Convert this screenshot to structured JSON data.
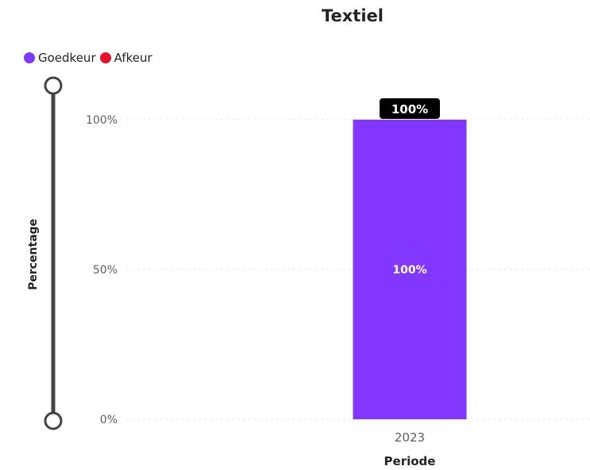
{
  "chart_data": {
    "type": "bar",
    "title": "Textiel",
    "xlabel": "Periode",
    "ylabel": "Percentage",
    "categories": [
      "2023"
    ],
    "series": [
      {
        "name": "Goedkeur",
        "color": "#8237ff",
        "values": [
          100
        ]
      },
      {
        "name": "Afkeur",
        "color": "#e8112d",
        "values": [
          0
        ]
      }
    ],
    "y_ticks": [
      "0%",
      "50%",
      "100%"
    ],
    "y_tick_values": [
      0,
      50,
      100
    ],
    "ylim": [
      0,
      100
    ],
    "data_labels": [
      "100%"
    ],
    "total_labels": [
      "100%"
    ],
    "grid": "dotted",
    "legend_position": "top-left"
  }
}
